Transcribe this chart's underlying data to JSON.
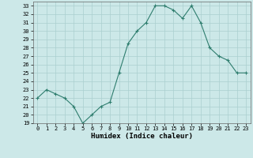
{
  "x": [
    0,
    1,
    2,
    3,
    4,
    5,
    6,
    7,
    8,
    9,
    10,
    11,
    12,
    13,
    14,
    15,
    16,
    17,
    18,
    19,
    20,
    21,
    22,
    23
  ],
  "y": [
    22,
    23,
    22.5,
    22,
    21,
    19,
    20,
    21,
    21.5,
    25,
    28.5,
    30,
    31,
    33,
    33,
    32.5,
    31.5,
    33,
    31,
    28,
    27,
    26.5,
    25,
    25
  ],
  "xlabel": "Humidex (Indice chaleur)",
  "xlim": [
    -0.5,
    23.5
  ],
  "ylim": [
    19,
    33.5
  ],
  "yticks": [
    19,
    20,
    21,
    22,
    23,
    24,
    25,
    26,
    27,
    28,
    29,
    30,
    31,
    32,
    33
  ],
  "xticks": [
    0,
    1,
    2,
    3,
    4,
    5,
    6,
    7,
    8,
    9,
    10,
    11,
    12,
    13,
    14,
    15,
    16,
    17,
    18,
    19,
    20,
    21,
    22,
    23
  ],
  "line_color": "#2e7d6e",
  "marker": "+",
  "bg_color": "#cce8e8",
  "grid_color": "#aacfcf"
}
